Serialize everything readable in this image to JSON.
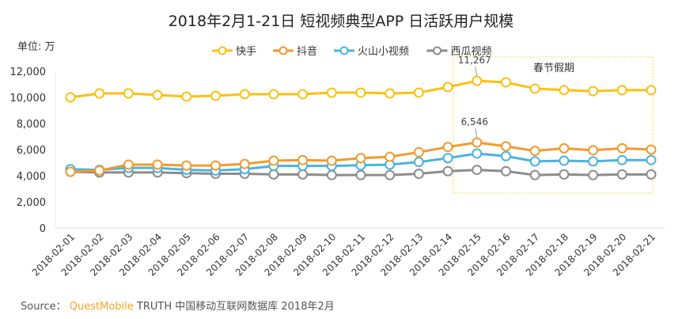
{
  "chart_data": {
    "type": "line",
    "title": "2018年2月1-21日 短视频典型APP 日活跃用户规模",
    "unit_label": "单位: 万",
    "ylim": [
      0,
      12000
    ],
    "yticks": [
      "0",
      "2,000",
      "4,000",
      "6,000",
      "8,000",
      "10,000",
      "12,000"
    ],
    "ytick_values": [
      0,
      2000,
      4000,
      6000,
      8000,
      10000,
      12000
    ],
    "legend_position": "top",
    "grid": false,
    "categories": [
      "2018-02-01",
      "2018-02-02",
      "2018-02-03",
      "2018-02-04",
      "2018-02-05",
      "2018-02-06",
      "2018-02-07",
      "2018-02-08",
      "2018-02-09",
      "2018-02-10",
      "2018-02-11",
      "2018-02-12",
      "2018-02-13",
      "2018-02-14",
      "2018-02-15",
      "2018-02-16",
      "2018-02-17",
      "2018-02-18",
      "2018-02-19",
      "2018-02-20",
      "2018-02-21"
    ],
    "series": [
      {
        "name": "快手",
        "color": "#fdc010",
        "values": [
          10000,
          10300,
          10300,
          10180,
          10060,
          10120,
          10240,
          10240,
          10240,
          10360,
          10360,
          10300,
          10360,
          10790,
          11267,
          11150,
          10670,
          10550,
          10480,
          10550,
          10550
        ]
      },
      {
        "name": "抖音",
        "color": "#f29a2e",
        "values": [
          4300,
          4400,
          4850,
          4850,
          4780,
          4780,
          4900,
          5150,
          5200,
          5150,
          5350,
          5450,
          5800,
          6200,
          6546,
          6250,
          5900,
          6100,
          5950,
          6100,
          6000
        ]
      },
      {
        "name": "火山小视频",
        "color": "#4bb3dd",
        "values": [
          4500,
          4450,
          4600,
          4600,
          4450,
          4400,
          4500,
          4750,
          4750,
          4750,
          4800,
          4850,
          5050,
          5350,
          5700,
          5500,
          5100,
          5150,
          5100,
          5200,
          5200
        ]
      },
      {
        "name": "西瓜视频",
        "color": "#8c8c8c",
        "values": [
          4300,
          4250,
          4250,
          4250,
          4200,
          4150,
          4150,
          4100,
          4100,
          4050,
          4050,
          4050,
          4150,
          4350,
          4450,
          4350,
          4050,
          4100,
          4050,
          4100,
          4100
        ]
      }
    ],
    "annotations": [
      {
        "text": "11,267",
        "series": 0,
        "index": 14
      },
      {
        "text": "6,546",
        "series": 1,
        "index": 14
      },
      {
        "text": "春节假期",
        "type": "highlight-box",
        "from": "2018-02-15",
        "to": "2018-02-21",
        "color": "#f5d44a"
      }
    ]
  },
  "source": {
    "prefix": "Source：",
    "brand": "QuestMobile",
    "rest": "TRUTH 中国移动互联网数据库 2018年2月"
  }
}
